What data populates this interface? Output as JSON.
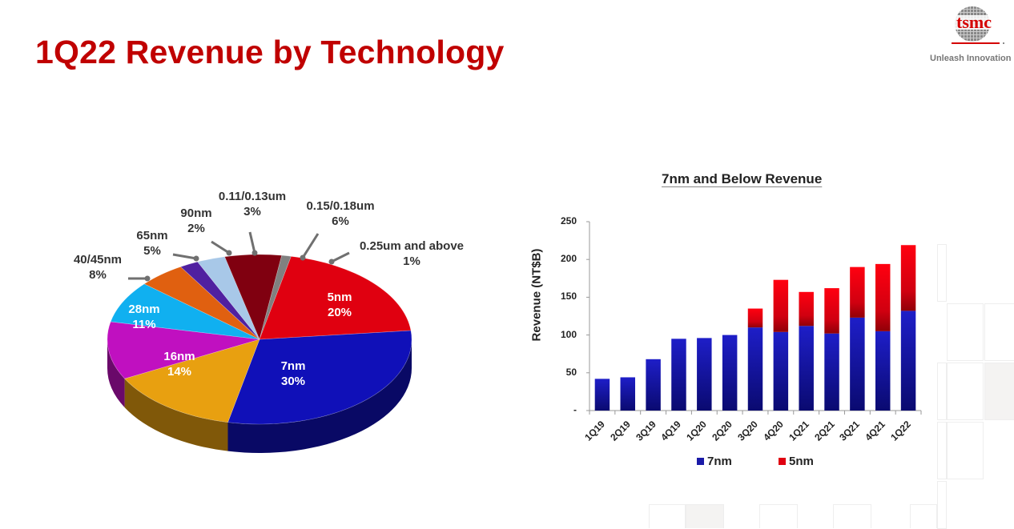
{
  "slide": {
    "title": "1Q22 Revenue by Technology",
    "logo": {
      "text": "tsmc",
      "tagline": "Unleash Innovation"
    }
  },
  "chart_data": [
    {
      "type": "pie",
      "title": "",
      "style": "3d",
      "slices": [
        {
          "label": "7nm",
          "value": 30,
          "display": "30%",
          "color": "#1010b8"
        },
        {
          "label": "16nm",
          "value": 14,
          "display": "14%",
          "color": "#e8a010"
        },
        {
          "label": "28nm",
          "value": 11,
          "display": "11%",
          "color": "#c010c0"
        },
        {
          "label": "40/45nm",
          "value": 8,
          "display": "8%",
          "color": "#10b0f0"
        },
        {
          "label": "65nm",
          "value": 5,
          "display": "5%",
          "color": "#e06010"
        },
        {
          "label": "90nm",
          "value": 2,
          "display": "2%",
          "color": "#5020a0"
        },
        {
          "label": "0.11/0.13um",
          "value": 3,
          "display": "3%",
          "color": "#a8c8e8"
        },
        {
          "label": "0.15/0.18um",
          "value": 6,
          "display": "6%",
          "color": "#800010"
        },
        {
          "label": "0.25um and above",
          "value": 1,
          "display": "1%",
          "color": "#808080"
        },
        {
          "label": "5nm",
          "value": 20,
          "display": "20%",
          "color": "#e00010"
        }
      ]
    },
    {
      "type": "bar",
      "stacked": true,
      "title": "7nm and Below Revenue",
      "xlabel": "",
      "ylabel": "Revenue (NT$B)",
      "ylim": [
        0,
        250
      ],
      "yticks": [
        "-",
        "50",
        "100",
        "150",
        "200",
        "250"
      ],
      "categories": [
        "1Q19",
        "2Q19",
        "3Q19",
        "4Q19",
        "1Q20",
        "2Q20",
        "3Q20",
        "4Q20",
        "1Q21",
        "2Q21",
        "3Q21",
        "4Q21",
        "1Q22"
      ],
      "series": [
        {
          "name": "7nm",
          "color": "#1a1aa8",
          "values": [
            42,
            44,
            68,
            95,
            96,
            100,
            110,
            104,
            112,
            102,
            123,
            105,
            132
          ]
        },
        {
          "name": "5nm",
          "color": "#e00010",
          "values": [
            0,
            0,
            0,
            0,
            0,
            0,
            25,
            69,
            45,
            60,
            67,
            89,
            87
          ]
        }
      ],
      "legend": {
        "position": "bottom",
        "entries": [
          "7nm",
          "5nm"
        ]
      },
      "grid": false
    }
  ]
}
